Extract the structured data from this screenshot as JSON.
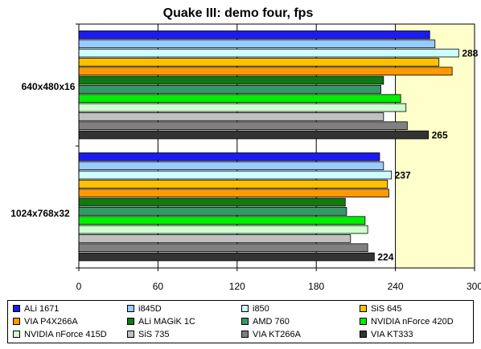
{
  "chart_data": {
    "type": "bar",
    "orientation": "horizontal",
    "title": "Quake III: demo four, fps",
    "xlim": [
      0,
      300
    ],
    "xticks": [
      0,
      60,
      120,
      180,
      240,
      300
    ],
    "categories": [
      "640x480x16",
      "1024x768x32"
    ],
    "highlight_band": [
      240,
      300
    ],
    "series": [
      {
        "name": "ALi 1671",
        "color": "#1c1cf0",
        "values": [
          266,
          228
        ]
      },
      {
        "name": "i845D",
        "color": "#99ccff",
        "values": [
          270,
          231
        ]
      },
      {
        "name": "i850",
        "color": "#ccffff",
        "values": [
          288,
          237
        ],
        "labels": [
          "288",
          "237"
        ]
      },
      {
        "name": "SiS 645",
        "color": "#ffc000",
        "values": [
          273,
          234
        ]
      },
      {
        "name": "VIA P4X266A",
        "color": "#ff9900",
        "values": [
          283,
          235
        ]
      },
      {
        "name": "ALi MAGiK 1C",
        "color": "#0f7a0f",
        "values": [
          231,
          202
        ]
      },
      {
        "name": "AMD 760",
        "color": "#339966",
        "values": [
          229,
          203
        ]
      },
      {
        "name": "NVIDIA nForce 420D",
        "color": "#00ee00",
        "values": [
          244,
          217
        ]
      },
      {
        "name": "NVIDIA nForce 415D",
        "color": "#ccffcc",
        "values": [
          248,
          219
        ]
      },
      {
        "name": "SiS 735",
        "color": "#c0c0c0",
        "values": [
          231,
          206
        ]
      },
      {
        "name": "VIA KT266A",
        "color": "#808080",
        "values": [
          249,
          219
        ]
      },
      {
        "name": "VIA KT333",
        "color": "#333333",
        "values": [
          265,
          224
        ],
        "labels": [
          "265",
          "224"
        ]
      }
    ]
  }
}
